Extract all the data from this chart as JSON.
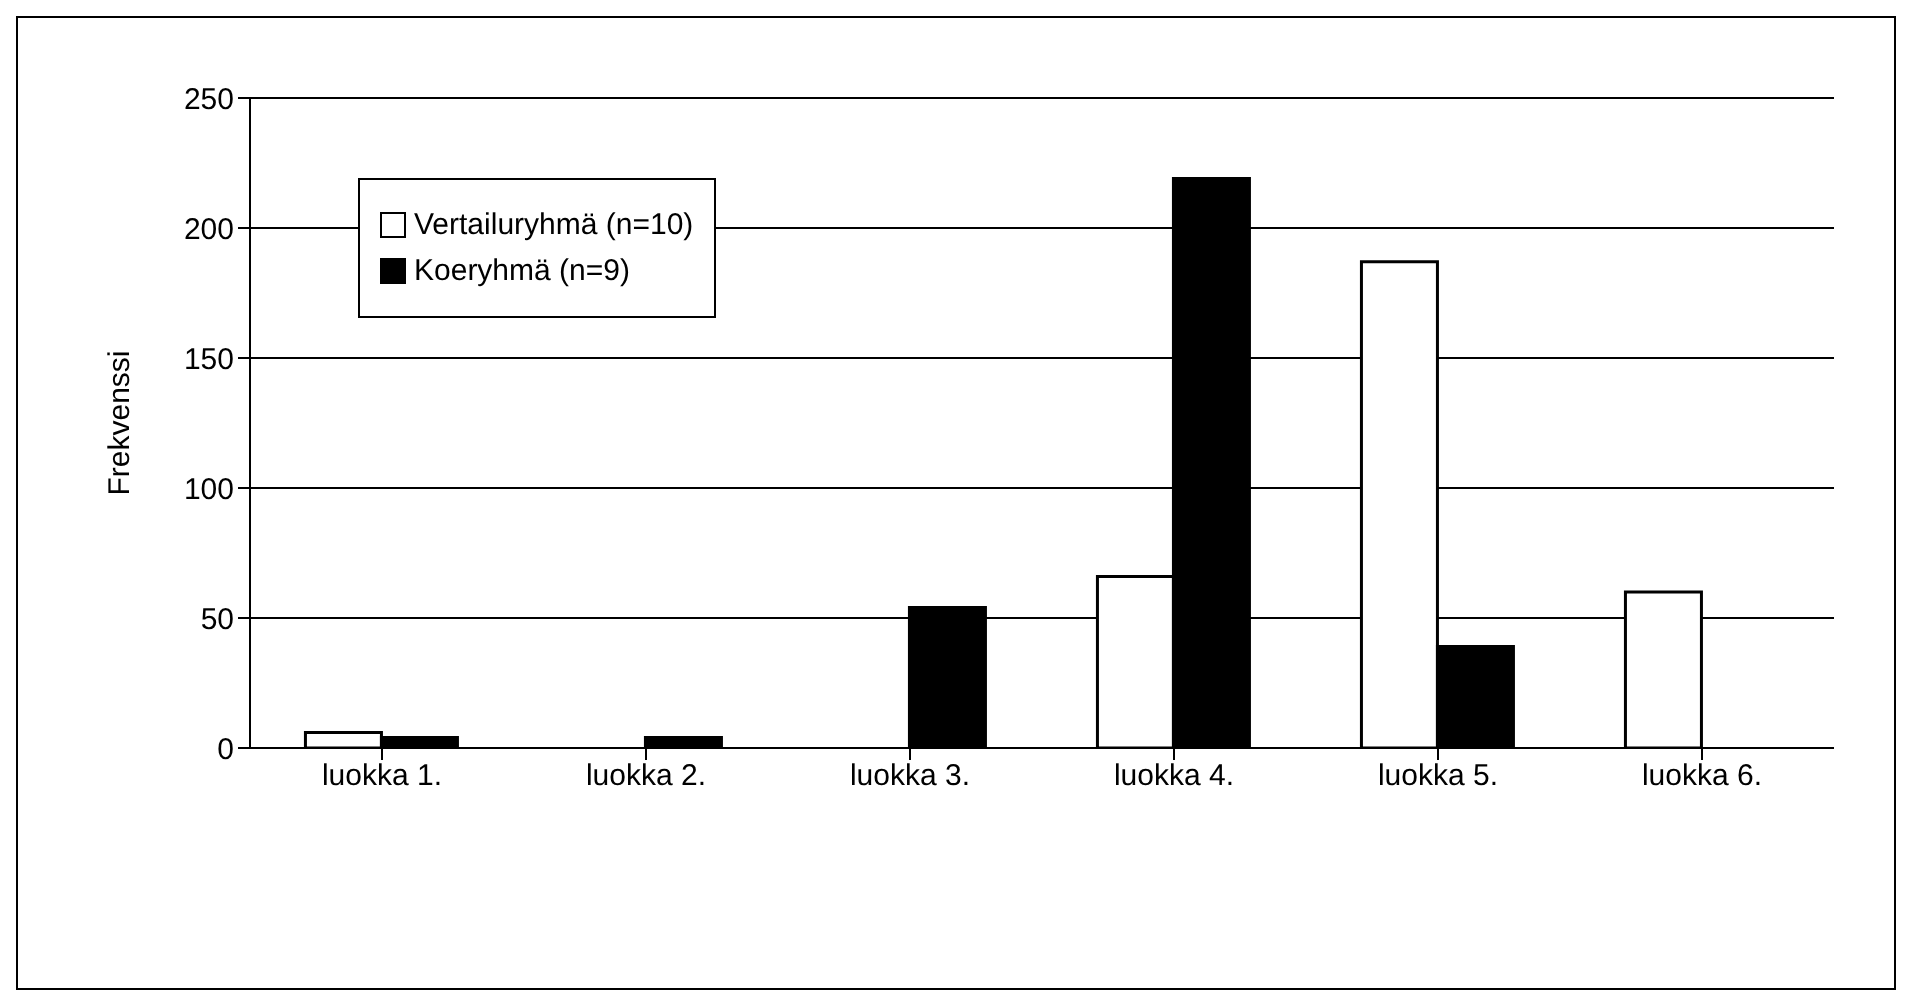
{
  "chart_data": {
    "type": "bar",
    "ylabel": "Frekvenssi",
    "categories": [
      "luokka 1.",
      "luokka 2.",
      "luokka 3.",
      "luokka 4.",
      "luokka 5.",
      "luokka 6."
    ],
    "series": [
      {
        "name": "Vertailuryhmä (n=10)",
        "color": "#ffffff",
        "values": [
          6,
          0,
          0,
          66,
          187,
          60
        ]
      },
      {
        "name": "Koeryhmä (n=9)",
        "color": "#000000",
        "values": [
          4,
          4,
          54,
          219,
          39,
          0
        ]
      }
    ],
    "ylim": [
      0,
      250
    ],
    "yticks": [
      0,
      50,
      100,
      150,
      200,
      250
    ],
    "grid": "y",
    "legend": "top left"
  }
}
